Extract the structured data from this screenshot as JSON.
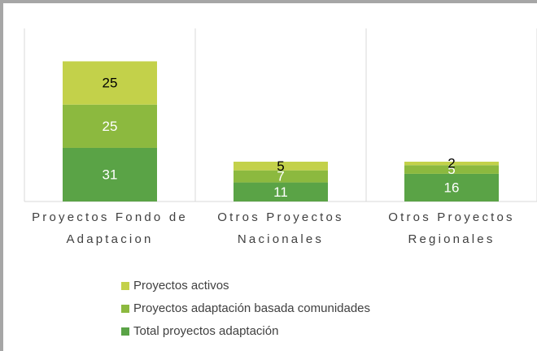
{
  "chart_data": {
    "type": "stacked_bar",
    "categories": [
      "Proyectos Fondo de Adaptacion",
      "Otros Proyectos Nacionales",
      "Otros Proyectos Regionales"
    ],
    "series": [
      {
        "name": "Total proyectos adaptación",
        "color": "#5aa346",
        "values": [
          31,
          11,
          16
        ]
      },
      {
        "name": "Proyectos adaptación basada comunidades",
        "color": "#8cb93f",
        "values": [
          25,
          7,
          5
        ]
      },
      {
        "name": "Proyectos activos",
        "color": "#c3d14a",
        "values": [
          25,
          5,
          2
        ]
      }
    ],
    "ylim": [
      0,
      100
    ],
    "legend": "bottom"
  }
}
